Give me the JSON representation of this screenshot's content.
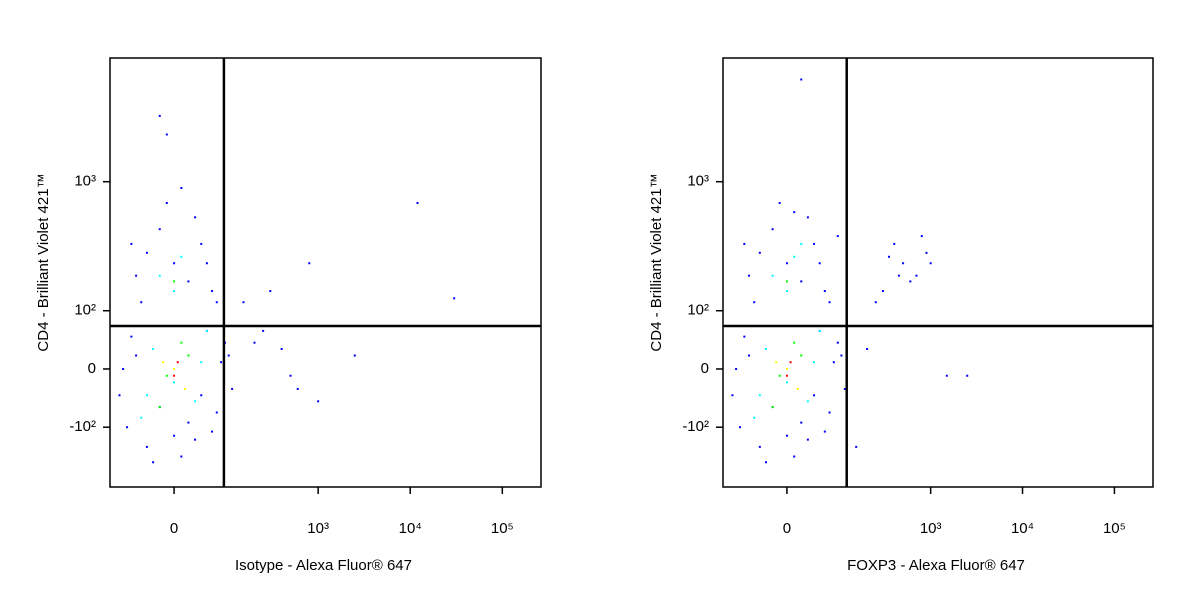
{
  "chart_data": [
    {
      "type": "scatter",
      "x_label": "Isotype - Alexa Fluor® 647",
      "y_label": "CD4 - Brilliant Violet 421™",
      "scale": "biexponential",
      "xlim": [
        -130,
        263000
      ],
      "ylim": [
        -310,
        7870
      ],
      "xticks": [
        0,
        {
          "value": 1000,
          "label": "10³"
        },
        {
          "value": 10000,
          "label": "10⁴"
        },
        {
          "value": 100000,
          "label": "10⁵"
        }
      ],
      "yticks": [
        {
          "value": -100,
          "label": "-10²"
        },
        0,
        {
          "value": 100,
          "label": "10²"
        },
        {
          "value": 1000,
          "label": "10³"
        }
      ],
      "gates": {
        "x": 87,
        "y": 69
      },
      "series": [
        {
          "color": "#0000ff",
          "x": [
            -80,
            -60,
            -40,
            -20,
            0,
            20,
            40,
            60,
            80,
            -90,
            -70,
            90,
            70,
            -30,
            10,
            50,
            -100,
            30,
            100,
            110,
            -60,
            -40,
            -20,
            0,
            20,
            40,
            60,
            -50,
            30,
            -10,
            50,
            70,
            -70,
            10,
            200,
            500,
            400,
            1000,
            300,
            800,
            12000,
            30000,
            2500,
            -20,
            -10,
            150,
            250,
            600
          ],
          "y": [
            -100,
            20,
            -150,
            -60,
            -120,
            -90,
            -40,
            -110,
            10,
            0,
            50,
            40,
            -70,
            -200,
            -180,
            60,
            -40,
            -130,
            20,
            -30,
            200,
            300,
            450,
            250,
            180,
            350,
            150,
            120,
            550,
            700,
            250,
            120,
            350,
            900,
            40,
            -10,
            30,
            -50,
            150,
            250,
            700,
            130,
            20,
            3000,
            2200,
            120,
            60,
            -30
          ]
        },
        {
          "color": "#00ffff",
          "x": [
            0,
            -30,
            30,
            -20,
            10,
            0,
            -40,
            40,
            -50,
            50
          ],
          "y": [
            -20,
            30,
            -50,
            200,
            280,
            150,
            -40,
            10,
            -80,
            60
          ]
        },
        {
          "color": "#00ff00",
          "x": [
            -10,
            20,
            -20,
            0,
            10
          ],
          "y": [
            -10,
            20,
            -60,
            180,
            40
          ]
        },
        {
          "color": "#ffff00",
          "x": [
            0,
            15,
            -15
          ],
          "y": [
            0,
            -30,
            10
          ]
        },
        {
          "color": "#ff0000",
          "x": [
            0,
            5
          ],
          "y": [
            -10,
            10
          ]
        }
      ]
    },
    {
      "type": "scatter",
      "x_label": "FOXP3 - Alexa Fluor® 647",
      "y_label": "CD4 - Brilliant Violet 421™",
      "scale": "biexponential",
      "xlim": [
        -130,
        263000
      ],
      "ylim": [
        -310,
        7870
      ],
      "xticks": [
        0,
        {
          "value": 1000,
          "label": "10³"
        },
        {
          "value": 10000,
          "label": "10⁴"
        },
        {
          "value": 100000,
          "label": "10⁵"
        }
      ],
      "yticks": [
        {
          "value": -100,
          "label": "-10²"
        },
        0,
        {
          "value": 100,
          "label": "10²"
        },
        {
          "value": 1000,
          "label": "10³"
        }
      ],
      "gates": {
        "x": 116,
        "y": 69
      },
      "series": [
        {
          "color": "#0000ff",
          "x": [
            -80,
            -60,
            -40,
            -20,
            0,
            20,
            40,
            60,
            80,
            -90,
            -70,
            90,
            70,
            -30,
            10,
            50,
            -100,
            30,
            100,
            110,
            -60,
            -40,
            -20,
            0,
            20,
            40,
            60,
            -50,
            30,
            -10,
            50,
            70,
            -70,
            10,
            90,
            300,
            500,
            700,
            400,
            900,
            250,
            600,
            800,
            350,
            1000,
            450,
            200,
            1500,
            2500,
            150,
            20
          ],
          "y": [
            -100,
            20,
            -150,
            -60,
            -120,
            -90,
            -40,
            -110,
            10,
            0,
            50,
            40,
            -70,
            -200,
            -180,
            60,
            -40,
            -130,
            20,
            -30,
            200,
            300,
            450,
            250,
            180,
            350,
            150,
            120,
            550,
            700,
            250,
            120,
            350,
            600,
            400,
            150,
            250,
            200,
            350,
            300,
            120,
            180,
            400,
            280,
            250,
            200,
            30,
            -10,
            -10,
            -150,
            5500
          ]
        },
        {
          "color": "#00ffff",
          "x": [
            0,
            -30,
            30,
            -20,
            10,
            0,
            -40,
            40,
            -50,
            50,
            20
          ],
          "y": [
            -20,
            30,
            -50,
            200,
            280,
            150,
            -40,
            10,
            -80,
            60,
            350
          ]
        },
        {
          "color": "#00ff00",
          "x": [
            -10,
            20,
            -20,
            0,
            10
          ],
          "y": [
            -10,
            20,
            -60,
            180,
            40
          ]
        },
        {
          "color": "#ffff00",
          "x": [
            0,
            15,
            -15
          ],
          "y": [
            0,
            -30,
            10
          ]
        },
        {
          "color": "#ff0000",
          "x": [
            0,
            5
          ],
          "y": [
            -10,
            10
          ]
        }
      ]
    }
  ]
}
